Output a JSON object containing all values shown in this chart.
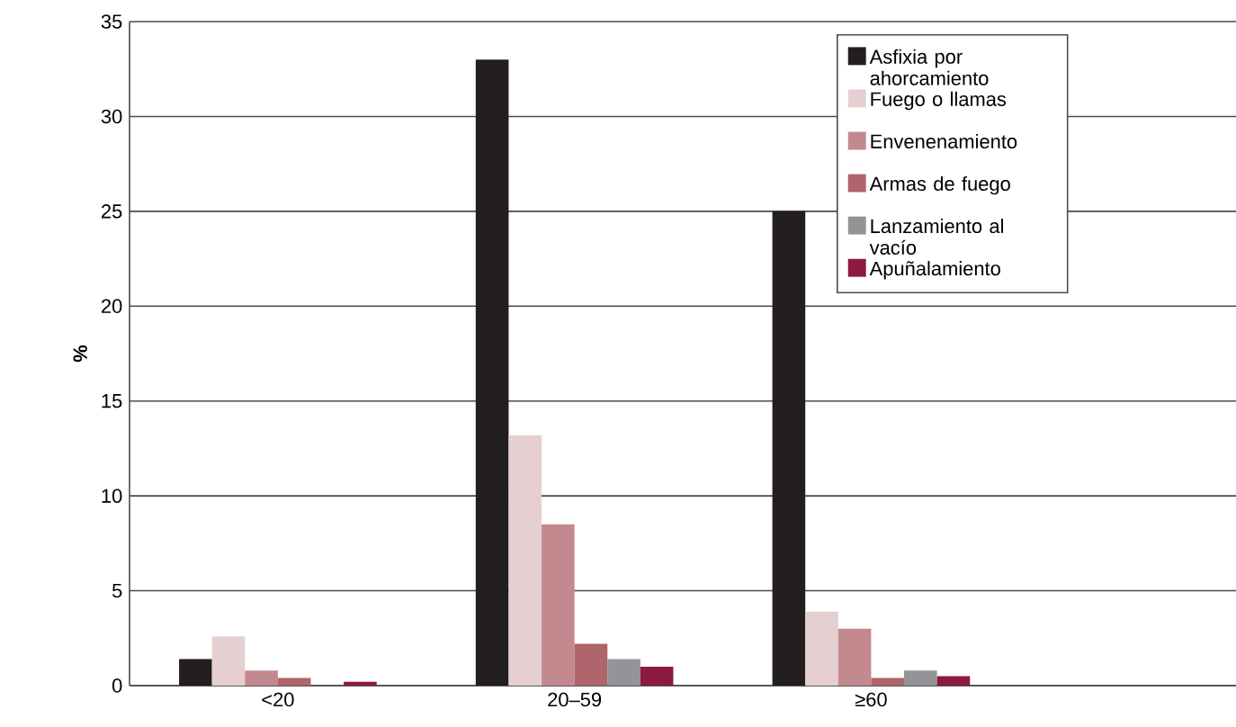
{
  "chart_data": {
    "type": "bar",
    "ylabel": "%",
    "categories": [
      "<20",
      "20–59",
      "≥60"
    ],
    "series": [
      {
        "name": "Asfixia por ahorcamiento",
        "color": "#231f20",
        "values": [
          1.4,
          33.0,
          25.0
        ]
      },
      {
        "name": "Fuego o llamas",
        "color": "#e6cfd1",
        "values": [
          2.6,
          13.2,
          3.9
        ]
      },
      {
        "name": "Envenenamiento",
        "color": "#c4898e",
        "values": [
          0.8,
          8.5,
          3.0
        ]
      },
      {
        "name": "Armas de fuego",
        "color": "#b0646b",
        "values": [
          0.4,
          2.2,
          0.4
        ]
      },
      {
        "name": "Lanzamiento al vacío",
        "color": "#929497",
        "values": [
          0,
          1.4,
          0.8
        ]
      },
      {
        "name": "Apuñalamiento",
        "color": "#8b1a3e",
        "values": [
          0.2,
          1.0,
          0.5
        ]
      }
    ],
    "ylim": [
      0,
      35
    ],
    "yticks": [
      0,
      5,
      10,
      15,
      20,
      25,
      30,
      35
    ],
    "grid": "y",
    "legend": "top right"
  }
}
